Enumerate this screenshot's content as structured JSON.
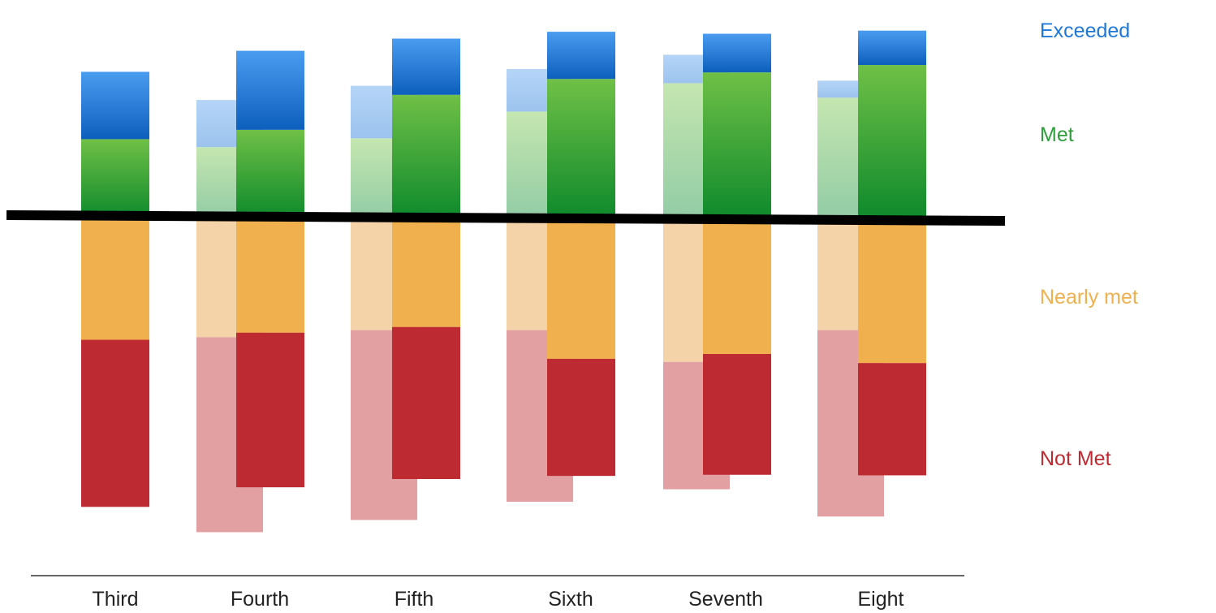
{
  "chart_data": {
    "type": "bar",
    "stacked": "diverging",
    "categories": [
      "Third",
      "Fourth",
      "Fifth",
      "Sixth",
      "Seventh",
      "Eight"
    ],
    "ylim": [
      -1.0,
      0.62
    ],
    "baseline_divider": true,
    "series": [
      {
        "name": "Exceeded",
        "color": "#1e78d8",
        "values": [
          0.237,
          0.278,
          0.198,
          0.166,
          0.136,
          0.121
        ]
      },
      {
        "name": "Met",
        "color": "#2e9e3a",
        "values": [
          0.276,
          0.309,
          0.432,
          0.488,
          0.511,
          0.537
        ]
      },
      {
        "name": "Nearly met",
        "color": "#f0b04e",
        "values": [
          -0.43,
          -0.405,
          -0.385,
          -0.497,
          -0.48,
          -0.512
        ]
      },
      {
        "name": "Not Met",
        "color": "#be2a32",
        "values": [
          -0.588,
          -0.544,
          -0.535,
          -0.412,
          -0.425,
          -0.395
        ]
      }
    ],
    "comparison_series": [
      {
        "category": "Third",
        "segments": null
      },
      {
        "category": "Fourth",
        "segments": {
          "Exceeded": 0.166,
          "Met": 0.248,
          "Nearly met": -0.421,
          "Not Met": -0.686
        }
      },
      {
        "category": "Fifth",
        "segments": {
          "Exceeded": 0.185,
          "Met": 0.279,
          "Nearly met": -0.396,
          "Not Met": -0.668
        }
      },
      {
        "category": "Sixth",
        "segments": {
          "Exceeded": 0.15,
          "Met": 0.373,
          "Nearly met": -0.396,
          "Not Met": -0.604
        }
      },
      {
        "category": "Seventh",
        "segments": {
          "Exceeded": 0.1,
          "Met": 0.473,
          "Nearly met": -0.508,
          "Not Met": -0.448
        }
      },
      {
        "category": "Eight",
        "segments": {
          "Exceeded": 0.06,
          "Met": 0.422,
          "Nearly met": -0.396,
          "Not Met": -0.656
        }
      }
    ],
    "legend_placement": "right",
    "grid": false,
    "title": "",
    "xlabel": "",
    "ylabel": ""
  }
}
